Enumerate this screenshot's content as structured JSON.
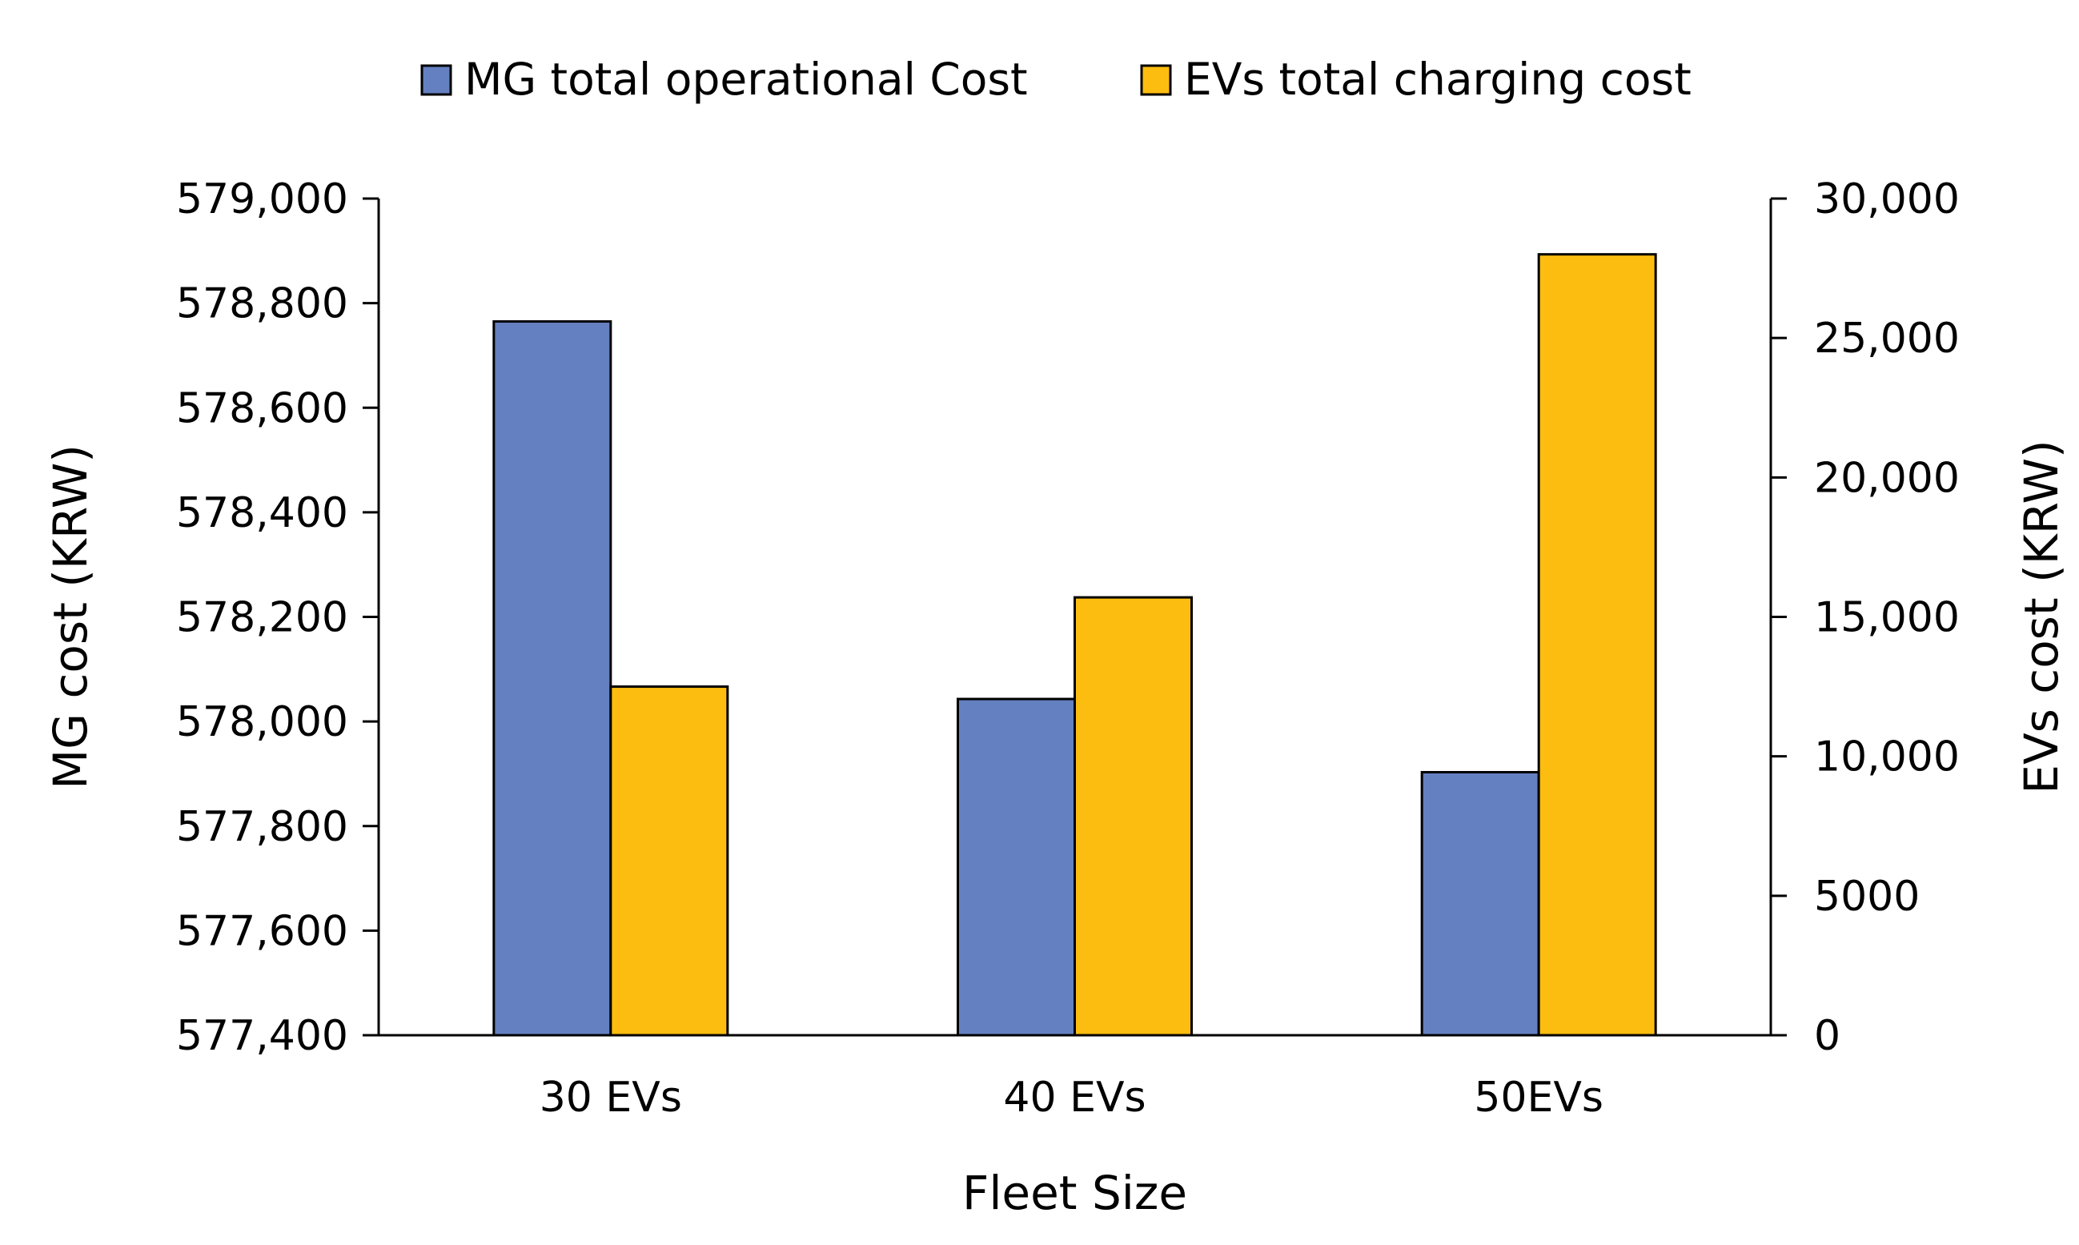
{
  "chart_data": {
    "type": "bar",
    "categories": [
      "30 EVs",
      "40 EVs",
      "50EVs"
    ],
    "xlabel": "Fleet Size",
    "series": [
      {
        "name": "MG total operational Cost",
        "axis": "left",
        "color": "#6480C0",
        "values": [
          578765,
          578043,
          577903
        ]
      },
      {
        "name": "EVs total charging cost",
        "axis": "right",
        "color": "#FDBD10",
        "values": [
          12500,
          15700,
          28000
        ]
      }
    ],
    "y_left": {
      "label": "MG cost (KRW)",
      "ylim": [
        577400,
        579000
      ],
      "ticks": [
        577400,
        577600,
        577800,
        578000,
        578200,
        578400,
        578600,
        578800,
        579000
      ],
      "tick_labels": [
        "577,400",
        "577,600",
        "577,800",
        "578,000",
        "578,200",
        "578,400",
        "578,600",
        "578,800",
        "579,000"
      ]
    },
    "y_right": {
      "label": "EVs cost (KRW)",
      "ylim": [
        0,
        30000
      ],
      "ticks": [
        0,
        5000,
        10000,
        15000,
        20000,
        25000,
        30000
      ],
      "tick_labels": [
        "0",
        "5000",
        "10,000",
        "15,000",
        "20,000",
        "25,000",
        "30,000"
      ]
    },
    "legend_position": "top-center",
    "grid": false
  }
}
